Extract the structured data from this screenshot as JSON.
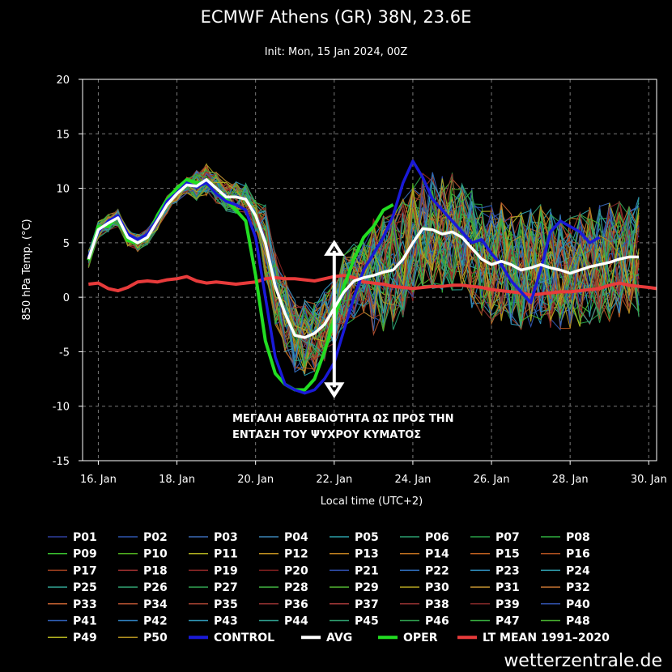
{
  "colors": {
    "avg": "#ffffff",
    "control": "#1a1ad8",
    "oper": "#22dd22",
    "ltmean": "#e83b3b",
    "grid": "#777777"
  },
  "chart_data": {
    "type": "line",
    "title": "ECMWF Athens (GR) 38N, 23.6E",
    "subtitle": "Init: Mon, 15 Jan 2024, 00Z",
    "xlabel": "Local time (UTC+2)",
    "ylabel": "850 hPa Temp. (°C)",
    "xlim": [
      15.6,
      30.2
    ],
    "ylim": [
      -15,
      20
    ],
    "yticks": [
      20,
      15,
      10,
      5,
      0,
      -5,
      -10,
      -15
    ],
    "xticks": [
      {
        "day": 16,
        "label": "16. Jan"
      },
      {
        "day": 18,
        "label": "18. Jan"
      },
      {
        "day": 20,
        "label": "20. Jan"
      },
      {
        "day": 22,
        "label": "22. Jan"
      },
      {
        "day": 24,
        "label": "24. Jan"
      },
      {
        "day": 26,
        "label": "26. Jan"
      },
      {
        "day": 28,
        "label": "28. Jan"
      },
      {
        "day": 30,
        "label": "30. Jan"
      }
    ],
    "x_days": [
      15.75,
      16.0,
      16.25,
      16.5,
      16.75,
      17.0,
      17.25,
      17.5,
      17.75,
      18.0,
      18.25,
      18.5,
      18.75,
      19.0,
      19.25,
      19.5,
      19.75,
      20.0,
      20.25,
      20.5,
      20.75,
      21.0,
      21.25,
      21.5,
      21.75,
      22.0,
      22.25,
      22.5,
      22.75,
      23.0,
      23.25,
      23.5,
      23.75,
      24.0,
      24.25,
      24.5,
      24.75,
      25.0,
      25.25,
      25.5,
      25.75,
      26.0,
      26.25,
      26.5,
      26.75,
      27.0,
      27.25,
      27.5,
      27.75,
      28.0,
      28.25,
      28.5,
      28.75,
      29.0,
      29.25,
      29.5,
      29.75,
      30.0,
      30.2
    ],
    "series": [
      {
        "name": "AVG",
        "role": "avg",
        "values": [
          3.5,
          6.2,
          6.8,
          7.3,
          5.5,
          5.0,
          5.5,
          7.0,
          8.5,
          9.5,
          10.3,
          10.2,
          10.8,
          10.0,
          9.2,
          9.2,
          9.0,
          7.5,
          5.0,
          1.0,
          -1.5,
          -3.5,
          -3.7,
          -3.3,
          -2.5,
          -1.0,
          0.5,
          1.5,
          1.8,
          2.0,
          2.3,
          2.5,
          3.5,
          5.0,
          6.3,
          6.2,
          5.8,
          6.0,
          5.5,
          4.5,
          3.5,
          3.0,
          3.3,
          3.0,
          2.5,
          2.7,
          3.0,
          2.7,
          2.5,
          2.2,
          2.5,
          2.8,
          3.0,
          3.2,
          3.5,
          3.7,
          3.7
        ]
      },
      {
        "name": "CONTROL",
        "role": "control",
        "values": [
          3.7,
          6.0,
          7.0,
          7.5,
          5.8,
          5.3,
          5.8,
          7.2,
          8.8,
          9.6,
          10.5,
          10.1,
          10.5,
          9.5,
          8.8,
          8.5,
          8.0,
          5.5,
          0.0,
          -5.5,
          -8.0,
          -8.5,
          -8.8,
          -8.5,
          -7.5,
          -6.0,
          -3.0,
          0.0,
          2.5,
          4.0,
          5.5,
          7.5,
          10.5,
          12.5,
          11.0,
          9.0,
          8.0,
          7.0,
          6.0,
          5.0,
          5.3,
          4.0,
          3.0,
          1.5,
          0.5,
          -0.5,
          2.5,
          6.0,
          7.0,
          6.5,
          6.0,
          5.0,
          5.5
        ]
      },
      {
        "name": "OPER",
        "role": "oper",
        "values": [
          3.4,
          6.5,
          6.5,
          7.5,
          5.2,
          5.0,
          5.5,
          7.5,
          9.0,
          10.0,
          10.8,
          10.5,
          10.5,
          9.5,
          9.0,
          8.0,
          7.0,
          2.0,
          -4.0,
          -7.0,
          -8.0,
          -8.5,
          -8.5,
          -7.5,
          -5.0,
          -2.0,
          1.0,
          3.5,
          5.5,
          6.5,
          8.0,
          8.5
        ]
      },
      {
        "name": "LT MEAN 1991–2020",
        "role": "ltmean",
        "values": [
          1.2,
          1.3,
          0.8,
          0.6,
          0.9,
          1.4,
          1.5,
          1.4,
          1.6,
          1.7,
          1.9,
          1.5,
          1.3,
          1.4,
          1.3,
          1.2,
          1.3,
          1.4,
          1.7,
          1.8,
          1.7,
          1.7,
          1.6,
          1.5,
          1.7,
          1.9,
          2.0,
          1.8,
          1.4,
          1.3,
          1.2,
          1.0,
          0.9,
          0.8,
          0.9,
          1.0,
          1.0,
          1.1,
          1.1,
          1.0,
          0.9,
          0.7,
          0.6,
          0.5,
          0.4,
          0.2,
          0.3,
          0.4,
          0.5,
          0.5,
          0.6,
          0.7,
          0.8,
          1.1,
          1.3,
          1.1,
          1.0,
          0.9,
          0.8
        ]
      }
    ],
    "ensemble_note": "P01–P50 perturbed members drawn as a spread around AVG"
  },
  "annotation": {
    "line1": "ΜΕΓΑΛΗ ΑΒΕΒΑΙΟΤΗΤΑ ΩΣ ΠΡΟΣ ΤΗΝ",
    "line2": "ΕΝΤΑΣΗ ΤΟΥ ΨΥΧΡΟΥ ΚΥΜΑΤΟΣ",
    "arrow_from": 5.0,
    "arrow_to": -9.0,
    "arrow_day": 22.0
  },
  "legend": [
    {
      "label": "P01",
      "color": "#2f3fa0"
    },
    {
      "label": "P02",
      "color": "#2f55b0"
    },
    {
      "label": "P03",
      "color": "#3a6ab8"
    },
    {
      "label": "P04",
      "color": "#3a86b8"
    },
    {
      "label": "P05",
      "color": "#2aa0a8"
    },
    {
      "label": "P06",
      "color": "#2aa070"
    },
    {
      "label": "P07",
      "color": "#28a048"
    },
    {
      "label": "P08",
      "color": "#30b040"
    },
    {
      "label": "P09",
      "color": "#3ac030"
    },
    {
      "label": "P10",
      "color": "#50b020"
    },
    {
      "label": "P11",
      "color": "#b0b020"
    },
    {
      "label": "P12",
      "color": "#c09020"
    },
    {
      "label": "P13",
      "color": "#c08020"
    },
    {
      "label": "P14",
      "color": "#c07020"
    },
    {
      "label": "P15",
      "color": "#c06020"
    },
    {
      "label": "P16",
      "color": "#b05020"
    },
    {
      "label": "P17",
      "color": "#a04020"
    },
    {
      "label": "P18",
      "color": "#a03030"
    },
    {
      "label": "P19",
      "color": "#902828"
    },
    {
      "label": "P20",
      "color": "#802020"
    },
    {
      "label": "P21",
      "color": "#3050b0"
    },
    {
      "label": "P22",
      "color": "#3070c0"
    },
    {
      "label": "P23",
      "color": "#3090c0"
    },
    {
      "label": "P24",
      "color": "#30a0b0"
    },
    {
      "label": "P25",
      "color": "#30a090"
    },
    {
      "label": "P26",
      "color": "#30a070"
    },
    {
      "label": "P27",
      "color": "#30a050"
    },
    {
      "label": "P28",
      "color": "#40b040"
    },
    {
      "label": "P29",
      "color": "#50b030"
    },
    {
      "label": "P30",
      "color": "#b0a020"
    },
    {
      "label": "P31",
      "color": "#c09030"
    },
    {
      "label": "P32",
      "color": "#c07030"
    },
    {
      "label": "P33",
      "color": "#c06030"
    },
    {
      "label": "P34",
      "color": "#b05030"
    },
    {
      "label": "P35",
      "color": "#a04030"
    },
    {
      "label": "P36",
      "color": "#903030"
    },
    {
      "label": "P37",
      "color": "#a03838"
    },
    {
      "label": "P38",
      "color": "#903030"
    },
    {
      "label": "P39",
      "color": "#802828"
    },
    {
      "label": "P40",
      "color": "#3050a8"
    },
    {
      "label": "P41",
      "color": "#3060b8"
    },
    {
      "label": "P42",
      "color": "#3080c0"
    },
    {
      "label": "P43",
      "color": "#3098b8"
    },
    {
      "label": "P44",
      "color": "#30a090"
    },
    {
      "label": "P45",
      "color": "#30a070"
    },
    {
      "label": "P46",
      "color": "#30a050"
    },
    {
      "label": "P47",
      "color": "#38b040"
    },
    {
      "label": "P48",
      "color": "#48b030"
    },
    {
      "label": "P49",
      "color": "#b0b020"
    },
    {
      "label": "P50",
      "color": "#b09020"
    },
    {
      "label": "CONTROL",
      "color": "#1a1ad8",
      "bold": true
    },
    {
      "label": "AVG",
      "color": "#ffffff",
      "bold": true
    },
    {
      "label": "OPER",
      "color": "#22dd22",
      "bold": true
    },
    {
      "label": "LT MEAN 1991–2020",
      "color": "#e83b3b",
      "bold": true
    }
  ],
  "brand": "wetterzentrale.de"
}
